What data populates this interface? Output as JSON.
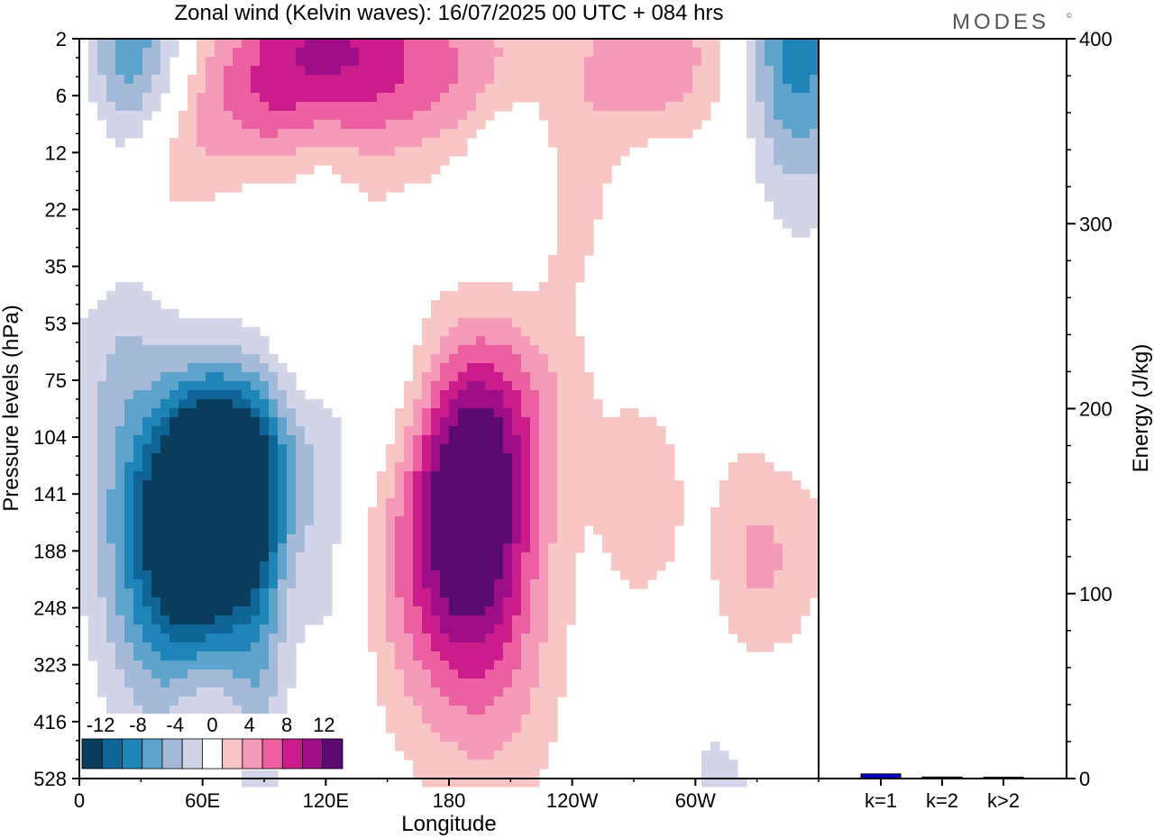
{
  "title": "Zonal wind (Kelvin waves):  16/07/2025  00 UTC  + 084 hrs",
  "brand": "MODES",
  "brand_mark": "©",
  "colors": {
    "scale": [
      "#0a3d5c",
      "#0f6595",
      "#1f84b8",
      "#5da3cc",
      "#a5bad9",
      "#d2d5e8",
      "#ffffff",
      "#f8c6c4",
      "#f59ab8",
      "#ec5fa0",
      "#cc1b8a",
      "#9e0f87",
      "#5b0a72"
    ],
    "bar": "#0000cc"
  },
  "chart_data": [
    {
      "type": "heatmap",
      "title": "Zonal wind (Kelvin waves):  16/07/2025  00 UTC  + 084 hrs",
      "xlabel": "Longitude",
      "ylabel": "Pressure levels (hPa)",
      "x_ticks": [
        "0",
        "60E",
        "120E",
        "180",
        "120W",
        "60W"
      ],
      "x_tick_lon": [
        0,
        60,
        120,
        180,
        240,
        300
      ],
      "xlim": [
        0,
        360
      ],
      "y_ticks": [
        "2",
        "6",
        "12",
        "22",
        "35",
        "53",
        "75",
        "104",
        "141",
        "188",
        "248",
        "323",
        "416",
        "528"
      ],
      "colorbar": {
        "labels": [
          "-12",
          "-8",
          "-4",
          "0",
          "4",
          "8",
          "12"
        ],
        "label_values": [
          -12,
          -8,
          -4,
          0,
          4,
          8,
          12
        ],
        "levels": [
          -12,
          -10,
          -8,
          -6,
          -4,
          -2,
          0,
          2,
          4,
          6,
          8,
          10,
          12
        ]
      },
      "features": [
        {
          "lon": 63,
          "level": 141,
          "value": -13.5,
          "wx": 18,
          "wy": 1.6
        },
        {
          "lon": 55,
          "level": 160,
          "value": -9,
          "wx": 28,
          "wy": 2.4
        },
        {
          "lon": 82,
          "level": 120,
          "value": -6,
          "wx": 25,
          "wy": 1.3
        },
        {
          "lon": 35,
          "level": 170,
          "value": -4,
          "wx": 20,
          "wy": 2.2
        },
        {
          "lon": 88,
          "level": 330,
          "value": -3,
          "wx": 9,
          "wy": 4
        },
        {
          "lon": 125,
          "level": 300,
          "value": -2.6,
          "wx": 11,
          "wy": 3.5
        },
        {
          "lon": 315,
          "level": 480,
          "value": -2.6,
          "wx": 22,
          "wy": 2
        },
        {
          "lon": 150,
          "level": 80,
          "value": -2.2,
          "wx": 18,
          "wy": 1.3
        },
        {
          "lon": 350,
          "level": 80,
          "value": -2.4,
          "wx": 14,
          "wy": 1.6
        },
        {
          "lon": 20,
          "level": 4,
          "value": -7,
          "wx": 12,
          "wy": 1.5
        },
        {
          "lon": 40,
          "level": 3,
          "value": -5,
          "wx": 12,
          "wy": 1.4
        },
        {
          "lon": 350,
          "level": 2.6,
          "value": -9,
          "wx": 18,
          "wy": 1.7
        },
        {
          "lon": 210,
          "level": 11,
          "value": -3,
          "wx": 20,
          "wy": 1.2
        },
        {
          "lon": 280,
          "level": 10,
          "value": -2.4,
          "wx": 18,
          "wy": 1.3
        },
        {
          "lon": 15,
          "level": 45,
          "value": -4,
          "wx": 18,
          "wy": 1.6
        },
        {
          "lon": 75,
          "level": 22,
          "value": -4,
          "wx": 24,
          "wy": 1.4
        },
        {
          "lon": 115,
          "level": 14,
          "value": -3,
          "wx": 14,
          "wy": 1.3
        },
        {
          "lon": 190,
          "level": 141,
          "value": 10,
          "wx": 18,
          "wy": 1.7
        },
        {
          "lon": 175,
          "level": 200,
          "value": 6,
          "wx": 30,
          "wy": 2.2
        },
        {
          "lon": 215,
          "level": 85,
          "value": 3.4,
          "wx": 25,
          "wy": 1.3
        },
        {
          "lon": 205,
          "level": 270,
          "value": 3.5,
          "wx": 24,
          "wy": 2.8
        },
        {
          "lon": 275,
          "level": 150,
          "value": 3.2,
          "wx": 16,
          "wy": 1.5
        },
        {
          "lon": 345,
          "level": 160,
          "value": 3.4,
          "wx": 22,
          "wy": 1.6
        },
        {
          "lon": 325,
          "level": 240,
          "value": 3,
          "wx": 16,
          "wy": 1.5
        },
        {
          "lon": 65,
          "level": 75,
          "value": 4,
          "wx": 22,
          "wy": 1.6
        },
        {
          "lon": 45,
          "level": 88,
          "value": 3,
          "wx": 18,
          "wy": 1.4
        },
        {
          "lon": 110,
          "level": 42,
          "value": 3,
          "wx": 30,
          "wy": 1.3
        },
        {
          "lon": 240,
          "level": 20,
          "value": 3,
          "wx": 14,
          "wy": 1.25
        },
        {
          "lon": 40,
          "level": 14,
          "value": 5,
          "wx": 25,
          "wy": 1.3
        },
        {
          "lon": 90,
          "level": 8,
          "value": 6,
          "wx": 30,
          "wy": 1.3
        },
        {
          "lon": 185,
          "level": 4,
          "value": 6,
          "wx": 35,
          "wy": 1.2
        },
        {
          "lon": 280,
          "level": 3.5,
          "value": 7,
          "wx": 25,
          "wy": 1.3
        },
        {
          "lon": 120,
          "level": 2.2,
          "value": 8,
          "wx": 30,
          "wy": 1.2
        },
        {
          "lon": 60,
          "level": 450,
          "value": 3,
          "wx": 10,
          "wy": 1.3
        },
        {
          "lon": 10,
          "level": 28,
          "value": 3,
          "wx": 14,
          "wy": 1.4
        }
      ]
    },
    {
      "type": "bar",
      "ylabel": "Energy (J/kg)",
      "categories": [
        "k=1",
        "k=2",
        "k>2"
      ],
      "values": [
        2.5,
        0.8,
        0.6
      ],
      "ylim": [
        0,
        400
      ],
      "y_ticks": [
        0,
        100,
        200,
        300,
        400
      ]
    }
  ]
}
